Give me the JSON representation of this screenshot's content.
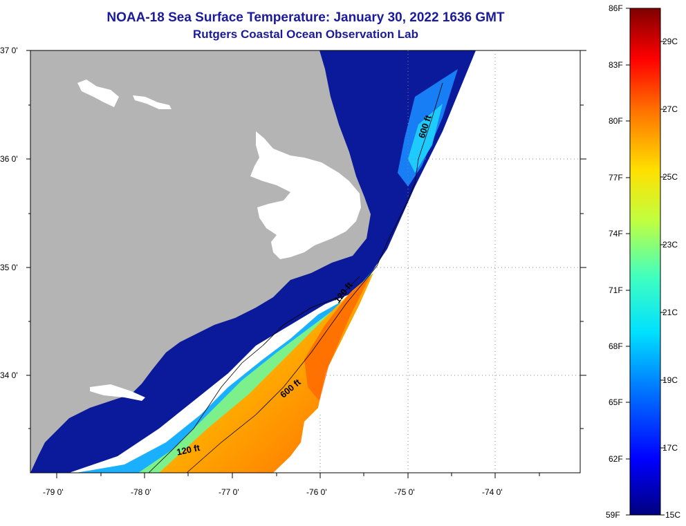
{
  "title": {
    "line1": "NOAA-18 Sea Surface Temperature:  January 30, 2022 1636 GMT",
    "line2": "Rutgers Coastal Ocean Observation Lab"
  },
  "map": {
    "lat_labels": [
      "37 0'",
      "36 0'",
      "35 0'",
      "34 0'"
    ],
    "lon_labels": [
      "-79 0'",
      "-78 0'",
      "-77 0'",
      "-76 0'",
      "-75 0'",
      "-74 0'"
    ],
    "isobaths": [
      {
        "label": "600 ft"
      },
      {
        "label": "120 ft"
      },
      {
        "label": "600 ft"
      },
      {
        "label": "120 ft"
      }
    ],
    "land_color": "#b4b4b4"
  },
  "colorbar": {
    "fahrenheit": [
      "86F",
      "83F",
      "80F",
      "77F",
      "74F",
      "71F",
      "68F",
      "65F",
      "62F",
      "59F"
    ],
    "celsius": [
      "29C",
      "27C",
      "25C",
      "23C",
      "21C",
      "19C",
      "17C",
      "15C"
    ]
  }
}
